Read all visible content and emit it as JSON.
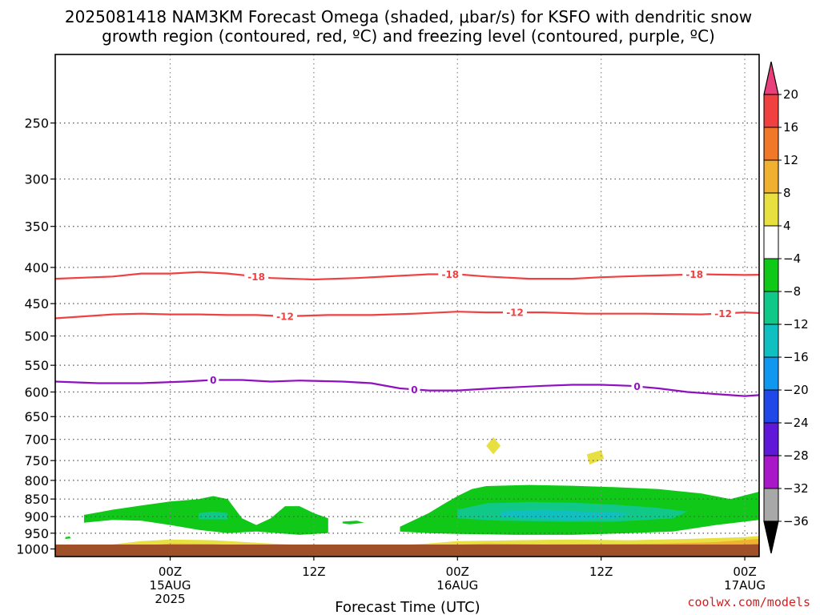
{
  "chart_data": {
    "type": "heatmap",
    "title_line1": "2025081418 NAM3KM Forecast Omega (shaded, μbar/s) for KSFO with dendritic snow",
    "title_line2": "growth region (contoured, red, ºC) and freezing level (contoured, purple, ºC)",
    "xlabel": "Forecast Time (UTC)",
    "ylabel": "",
    "y_scale": "log-pressure (hPa), inverted",
    "ylim": [
      1025,
      200
    ],
    "xlim_hours": [
      -8,
      41
    ],
    "y_ticks": [
      "250",
      "300",
      "350",
      "400",
      "450",
      "500",
      "550",
      "600",
      "650",
      "700",
      "750",
      "800",
      "850",
      "900",
      "950",
      "1000"
    ],
    "x_ticks": [
      {
        "hour": 0,
        "label": "00Z",
        "sub1": "15AUG",
        "sub2": "2025"
      },
      {
        "hour": 10,
        "label": "12Z",
        "sub1": "",
        "sub2": ""
      },
      {
        "hour": 20,
        "label": "00Z",
        "sub1": "16AUG",
        "sub2": ""
      },
      {
        "hour": 30,
        "label": "12Z",
        "sub1": "",
        "sub2": ""
      },
      {
        "hour": 40,
        "label": "00Z",
        "sub1": "17AUG",
        "sub2": ""
      }
    ],
    "grid": true,
    "credit": "coolwx.com/models",
    "colorbar": {
      "ticks": [
        "20",
        "16",
        "12",
        "8",
        "4",
        "−4",
        "−8",
        "−12",
        "−16",
        "−20",
        "−24",
        "−28",
        "−32",
        "−36"
      ],
      "bins": [
        {
          "color": "#e8407a"
        },
        {
          "color": "#f04040"
        },
        {
          "color": "#f07828"
        },
        {
          "color": "#f0b030"
        },
        {
          "color": "#e8e040"
        },
        {
          "color": "#ffffff"
        },
        {
          "color": "#10c818"
        },
        {
          "color": "#10c888"
        },
        {
          "color": "#10c0c0"
        },
        {
          "color": "#1098f0"
        },
        {
          "color": "#2048e8"
        },
        {
          "color": "#6018d8"
        },
        {
          "color": "#a818c8"
        },
        {
          "color": "#a8a8a8"
        },
        {
          "color": "#000000"
        }
      ]
    },
    "contours": [
      {
        "label": "-18",
        "color": "#f04040",
        "points": [
          [
            -8,
            415
          ],
          [
            -4,
            412
          ],
          [
            -2,
            408
          ],
          [
            0,
            408
          ],
          [
            2,
            406
          ],
          [
            4,
            408
          ],
          [
            7,
            414
          ],
          [
            10,
            416
          ],
          [
            13,
            414
          ],
          [
            16,
            411
          ],
          [
            18,
            409
          ],
          [
            20,
            409
          ],
          [
            22,
            412
          ],
          [
            25,
            415
          ],
          [
            28,
            415
          ],
          [
            30,
            413
          ],
          [
            33,
            411
          ],
          [
            37,
            409
          ],
          [
            40,
            410
          ],
          [
            43,
            409
          ],
          [
            45,
            413
          ]
        ],
        "label_hours": [
          6,
          19.5,
          36.5
        ]
      },
      {
        "label": "-12",
        "color": "#f04040",
        "points": [
          [
            -8,
            472
          ],
          [
            -4,
            466
          ],
          [
            -2,
            465
          ],
          [
            0,
            466
          ],
          [
            2,
            466
          ],
          [
            4,
            467
          ],
          [
            6,
            467
          ],
          [
            8,
            469
          ],
          [
            11,
            467
          ],
          [
            14,
            467
          ],
          [
            17,
            465
          ],
          [
            20,
            462
          ],
          [
            22,
            463
          ],
          [
            26,
            463
          ],
          [
            29,
            465
          ],
          [
            33,
            465
          ],
          [
            37,
            466
          ],
          [
            40,
            463
          ],
          [
            43,
            466
          ],
          [
            45,
            471
          ]
        ],
        "label_hours": [
          8,
          24,
          38.5
        ]
      },
      {
        "label": "0",
        "color": "#9010c0",
        "points": [
          [
            -8,
            580
          ],
          [
            -5,
            583
          ],
          [
            -2,
            583
          ],
          [
            1,
            580
          ],
          [
            3,
            577
          ],
          [
            5,
            577
          ],
          [
            7,
            580
          ],
          [
            9,
            578
          ],
          [
            12,
            580
          ],
          [
            14,
            583
          ],
          [
            16,
            593
          ],
          [
            18,
            597
          ],
          [
            20,
            597
          ],
          [
            23,
            592
          ],
          [
            26,
            588
          ],
          [
            28,
            586
          ],
          [
            30,
            586
          ],
          [
            32,
            588
          ],
          [
            34,
            593
          ],
          [
            36,
            600
          ],
          [
            38,
            604
          ],
          [
            40,
            608
          ],
          [
            42,
            604
          ],
          [
            44,
            595
          ],
          [
            45,
            590
          ]
        ],
        "label_hours": [
          3,
          17,
          32.5
        ]
      }
    ],
    "shaded_regions": [
      {
        "value": "−4 to −8",
        "color": "#10c818",
        "points": [
          [
            -6,
            895
          ],
          [
            -4,
            880
          ],
          [
            -2,
            868
          ],
          [
            0,
            857
          ],
          [
            2,
            850
          ],
          [
            3,
            842
          ],
          [
            4,
            850
          ],
          [
            5,
            905
          ],
          [
            6,
            925
          ],
          [
            7,
            905
          ],
          [
            8,
            870
          ],
          [
            9,
            870
          ],
          [
            10,
            890
          ],
          [
            11,
            905
          ],
          [
            11,
            950
          ],
          [
            9,
            955
          ],
          [
            6,
            945
          ],
          [
            4,
            950
          ],
          [
            2,
            940
          ],
          [
            0,
            925
          ],
          [
            -2,
            912
          ],
          [
            -4,
            910
          ],
          [
            -6,
            918
          ]
        ]
      },
      {
        "value": "−4 to −8",
        "color": "#10c818",
        "points": [
          [
            16,
            930
          ],
          [
            17,
            910
          ],
          [
            18,
            890
          ],
          [
            19,
            865
          ],
          [
            20,
            842
          ],
          [
            21,
            823
          ],
          [
            22,
            815
          ],
          [
            25,
            812
          ],
          [
            28,
            814
          ],
          [
            31,
            818
          ],
          [
            34,
            823
          ],
          [
            37,
            835
          ],
          [
            39,
            850
          ],
          [
            41,
            830
          ],
          [
            43,
            815
          ],
          [
            45,
            815
          ],
          [
            45,
            870
          ],
          [
            43,
            895
          ],
          [
            41,
            910
          ],
          [
            38,
            925
          ],
          [
            35,
            945
          ],
          [
            32,
            950
          ],
          [
            28,
            955
          ],
          [
            24,
            955
          ],
          [
            20,
            952
          ],
          [
            18,
            950
          ],
          [
            16,
            945
          ]
        ]
      },
      {
        "value": "−4 to −8",
        "color": "#10c818",
        "points": [
          [
            12,
            915
          ],
          [
            13,
            912
          ],
          [
            13.5,
            918
          ],
          [
            12.5,
            923
          ],
          [
            12,
            920
          ]
        ]
      },
      {
        "value": "−4 to −8",
        "color": "#10c818",
        "points": [
          [
            -7.3,
            962
          ],
          [
            -7,
            960
          ],
          [
            -6.9,
            966
          ],
          [
            -7.3,
            968
          ]
        ]
      },
      {
        "value": "−8 to −12",
        "color": "#10c888",
        "points": [
          [
            20,
            880
          ],
          [
            22,
            862
          ],
          [
            25,
            858
          ],
          [
            28,
            860
          ],
          [
            31,
            866
          ],
          [
            34,
            875
          ],
          [
            36,
            885
          ],
          [
            35,
            905
          ],
          [
            31,
            915
          ],
          [
            27,
            915
          ],
          [
            23,
            912
          ],
          [
            20,
            905
          ]
        ]
      },
      {
        "value": "−8 to −12",
        "color": "#10c888",
        "points": [
          [
            2,
            890
          ],
          [
            3,
            885
          ],
          [
            4,
            890
          ],
          [
            4,
            908
          ],
          [
            2,
            908
          ]
        ]
      },
      {
        "value": "−12 to −16",
        "color": "#10c0c0",
        "points": [
          [
            23,
            885
          ],
          [
            26,
            880
          ],
          [
            29,
            886
          ],
          [
            32,
            890
          ],
          [
            31,
            905
          ],
          [
            28,
            910
          ],
          [
            25,
            906
          ],
          [
            23,
            900
          ]
        ]
      },
      {
        "value": "4 to 8",
        "color": "#e8e040",
        "points": [
          [
            -5,
            995
          ],
          [
            -4,
            985
          ],
          [
            -2,
            975
          ],
          [
            0,
            970
          ],
          [
            3,
            972
          ],
          [
            6,
            980
          ],
          [
            9,
            987
          ],
          [
            12,
            992
          ],
          [
            15,
            990
          ],
          [
            18,
            982
          ],
          [
            20,
            975
          ],
          [
            24,
            972
          ],
          [
            28,
            970
          ],
          [
            32,
            972
          ],
          [
            36,
            968
          ],
          [
            40,
            962
          ],
          [
            42,
            955
          ],
          [
            45,
            955
          ],
          [
            45,
            1010
          ],
          [
            -5,
            1010
          ]
        ]
      },
      {
        "value": "4 to 8",
        "color": "#e8e040",
        "points": [
          [
            22,
            715
          ],
          [
            22.5,
            695
          ],
          [
            23,
            715
          ],
          [
            22.5,
            735
          ]
        ]
      },
      {
        "value": "4 to 8",
        "color": "#e8e040",
        "points": [
          [
            29,
            735
          ],
          [
            30,
            725
          ],
          [
            30.2,
            745
          ],
          [
            29.2,
            760
          ]
        ]
      },
      {
        "value": "8 to 12",
        "color": "#f0b030",
        "points": [
          [
            -4,
            1000
          ],
          [
            -2,
            990
          ],
          [
            0,
            982
          ],
          [
            3,
            984
          ],
          [
            6,
            992
          ],
          [
            8,
            1000
          ],
          [
            16,
            1000
          ],
          [
            19,
            988
          ],
          [
            22,
            982
          ],
          [
            26,
            985
          ],
          [
            30,
            984
          ],
          [
            34,
            983
          ],
          [
            38,
            978
          ],
          [
            41,
            968
          ],
          [
            45,
            965
          ],
          [
            45,
            1010
          ],
          [
            -4,
            1010
          ]
        ]
      },
      {
        "value": "12 to 16",
        "color": "#f07828",
        "points": [
          [
            -2,
            1003
          ],
          [
            0,
            995
          ],
          [
            3,
            997
          ],
          [
            5,
            1003
          ],
          [
            18,
            1003
          ],
          [
            20,
            994
          ],
          [
            23,
            993
          ],
          [
            25,
            1000
          ],
          [
            36,
            1000
          ],
          [
            39,
            987
          ],
          [
            42,
            982
          ],
          [
            45,
            980
          ],
          [
            45,
            1010
          ],
          [
            -2,
            1010
          ]
        ]
      },
      {
        "value": "16 to 20",
        "color": "#f04040",
        "points": [
          [
            18,
            1003
          ],
          [
            20,
            997
          ],
          [
            22,
            998
          ],
          [
            23,
            1004
          ]
        ]
      },
      {
        "value": "16 to 20",
        "color": "#f04040",
        "points": [
          [
            37,
            1000
          ],
          [
            39,
            988
          ],
          [
            41,
            985
          ],
          [
            43,
            995
          ],
          [
            43,
            1003
          ]
        ]
      }
    ]
  }
}
